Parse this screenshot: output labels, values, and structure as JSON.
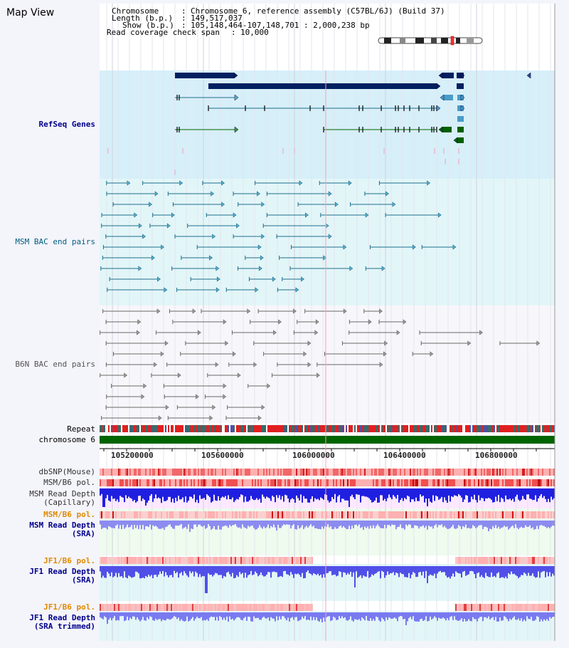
{
  "view_title": "Map View",
  "info": {
    "chromosome_label": "Chromosome",
    "chromosome_value": "Chromosome 6, reference assembly (C57BL/6J) (Build 37)",
    "length_label": "Length (b.p.)",
    "length_value": "149,517,037",
    "show_label": "Show (b.p.)",
    "show_value": "105,148,464-107,148,701 : 2,000,238 bp",
    "coverage_label": "Read coverage check span",
    "coverage_value": "10,000"
  },
  "axis": {
    "ticks": [
      "105200000",
      "105600000",
      "106000000",
      "106400000",
      "106800000"
    ]
  },
  "tracks": {
    "refseq": "RefSeq Genes",
    "msm_bac": "MSM BAC end pairs",
    "b6n_bac": "B6N BAC end pairs",
    "repeat": "Repeat",
    "chromosome": "chromosome 6",
    "dbsnp": "dbSNP(Mouse)",
    "msm_b6_pol": "MSM/B6 pol.",
    "msm_depth_cap_1": "MSM Read Depth",
    "msm_depth_cap_2": "(Capillary)",
    "msm_b6_pol_2": "MSM/B6 pol.",
    "msm_depth_sra_1": "MSM Read Depth",
    "msm_depth_sra_2": "(SRA)",
    "jf1_b6_pol": "JF1/B6 pol.",
    "jf1_depth_sra_1": "JF1 Read Depth",
    "jf1_depth_sra_2": "(SRA)",
    "jf1_b6_pol_2": "JF1/B6 pol.",
    "jf1_depth_trim_1": "JF1 Read Depth",
    "jf1_depth_trim_2": "(SRA trimmed)"
  },
  "colors": {
    "navy": "#002060",
    "teal": "#1e6e8c",
    "gray": "#6a6a6a",
    "green": "#006000",
    "track_blue": "#1f1fe0",
    "snp_red": "#f05050",
    "label_blue": "#00008b",
    "label_orange": "#e08a00",
    "label_teal": "#006080"
  }
}
